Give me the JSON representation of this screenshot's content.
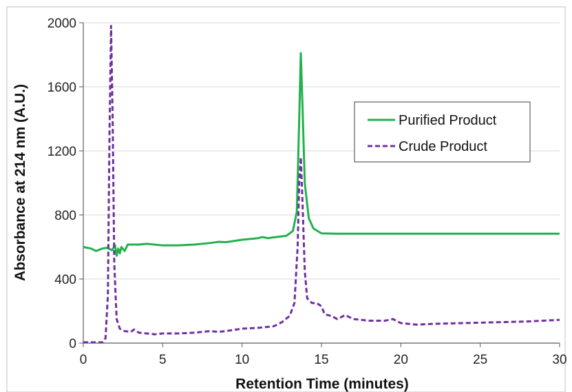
{
  "chart_data": {
    "type": "line",
    "title": "",
    "xlabel": "Retention Time (minutes)",
    "ylabel": "Absorbance at 214 nm (A.U.)",
    "xlim": [
      0,
      30
    ],
    "ylim": [
      0,
      2000
    ],
    "x_ticks": [
      "0",
      "5",
      "10",
      "15",
      "20",
      "25",
      "30"
    ],
    "y_ticks": [
      "0",
      "400",
      "800",
      "1200",
      "1600",
      "2000"
    ],
    "grid": "horizontal",
    "legend": "top-right",
    "series": [
      {
        "name": "Purified Product",
        "color": "#22b14c",
        "style": "solid",
        "points": [
          [
            0,
            600
          ],
          [
            0.5,
            590
          ],
          [
            0.8,
            575
          ],
          [
            1.2,
            590
          ],
          [
            1.5,
            595
          ],
          [
            1.8,
            580
          ],
          [
            2.0,
            610
          ],
          [
            2.1,
            545
          ],
          [
            2.2,
            590
          ],
          [
            2.3,
            560
          ],
          [
            2.4,
            600
          ],
          [
            2.6,
            575
          ],
          [
            2.8,
            615
          ],
          [
            3.5,
            615
          ],
          [
            4,
            620
          ],
          [
            5,
            610
          ],
          [
            6,
            610
          ],
          [
            7,
            615
          ],
          [
            8,
            625
          ],
          [
            8.5,
            632
          ],
          [
            9,
            630
          ],
          [
            10,
            645
          ],
          [
            11,
            655
          ],
          [
            11.3,
            662
          ],
          [
            11.6,
            655
          ],
          [
            12,
            660
          ],
          [
            12.8,
            670
          ],
          [
            13.2,
            700
          ],
          [
            13.45,
            820
          ],
          [
            13.6,
            1400
          ],
          [
            13.7,
            1810
          ],
          [
            13.8,
            1500
          ],
          [
            13.95,
            1000
          ],
          [
            14.2,
            780
          ],
          [
            14.5,
            715
          ],
          [
            15,
            685
          ],
          [
            16,
            683
          ],
          [
            20,
            683
          ],
          [
            25,
            683
          ],
          [
            30,
            683
          ]
        ]
      },
      {
        "name": "Crude Product",
        "color": "#7030a0",
        "style": "dashed",
        "points": [
          [
            0,
            5
          ],
          [
            1.2,
            5
          ],
          [
            1.4,
            30
          ],
          [
            1.55,
            300
          ],
          [
            1.65,
            1300
          ],
          [
            1.75,
            1980
          ],
          [
            1.85,
            1400
          ],
          [
            1.95,
            500
          ],
          [
            2.1,
            150
          ],
          [
            2.3,
            90
          ],
          [
            2.6,
            75
          ],
          [
            3,
            70
          ],
          [
            3.2,
            85
          ],
          [
            3.5,
            65
          ],
          [
            4,
            60
          ],
          [
            4.5,
            55
          ],
          [
            5,
            60
          ],
          [
            6,
            60
          ],
          [
            7,
            65
          ],
          [
            8,
            75
          ],
          [
            8.5,
            70
          ],
          [
            9,
            75
          ],
          [
            10,
            90
          ],
          [
            11,
            95
          ],
          [
            12,
            105
          ],
          [
            12.5,
            130
          ],
          [
            13,
            170
          ],
          [
            13.3,
            250
          ],
          [
            13.5,
            600
          ],
          [
            13.6,
            1000
          ],
          [
            13.7,
            1160
          ],
          [
            13.8,
            900
          ],
          [
            13.95,
            450
          ],
          [
            14.1,
            280
          ],
          [
            14.4,
            250
          ],
          [
            14.7,
            250
          ],
          [
            15,
            230
          ],
          [
            15.2,
            180
          ],
          [
            15.6,
            170
          ],
          [
            16,
            150
          ],
          [
            16.5,
            175
          ],
          [
            17,
            150
          ],
          [
            18,
            140
          ],
          [
            19,
            140
          ],
          [
            19.5,
            150
          ],
          [
            20,
            125
          ],
          [
            21,
            115
          ],
          [
            22,
            120
          ],
          [
            24,
            125
          ],
          [
            26,
            130
          ],
          [
            28,
            135
          ],
          [
            30,
            145
          ]
        ]
      }
    ]
  }
}
